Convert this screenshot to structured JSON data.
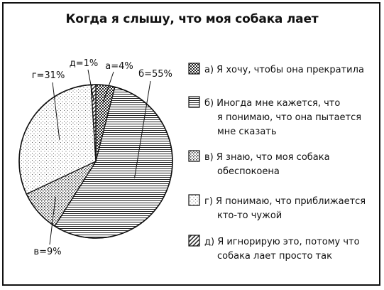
{
  "chart_data": {
    "type": "pie",
    "title": "Когда я слышу, что моя собака лает",
    "slices": [
      {
        "key": "а",
        "label": "а=4%",
        "value": 4,
        "pattern": "checker",
        "legend": [
          "а) Я хочу, чтобы она прекратила"
        ]
      },
      {
        "key": "б",
        "label": "б=55%",
        "value": 55,
        "pattern": "hlines",
        "legend": [
          "б) Иногда мне кажется, что",
          "я понимаю, что она пытается",
          "мне сказать"
        ]
      },
      {
        "key": "в",
        "label": "в=9%",
        "value": 9,
        "pattern": "dots",
        "legend": [
          "в) Я знаю, что моя собака",
          "обеспокоена"
        ]
      },
      {
        "key": "г",
        "label": "г=31%",
        "value": 31,
        "pattern": "lightdots",
        "legend": [
          "г) Я понимаю, что приближается",
          "кто-то чужой"
        ]
      },
      {
        "key": "д",
        "label": "д=1%",
        "value": 1,
        "pattern": "diag",
        "legend": [
          "д) Я игнорирую это, потому что",
          "собака лает просто так"
        ]
      }
    ],
    "legend_position": "right"
  }
}
